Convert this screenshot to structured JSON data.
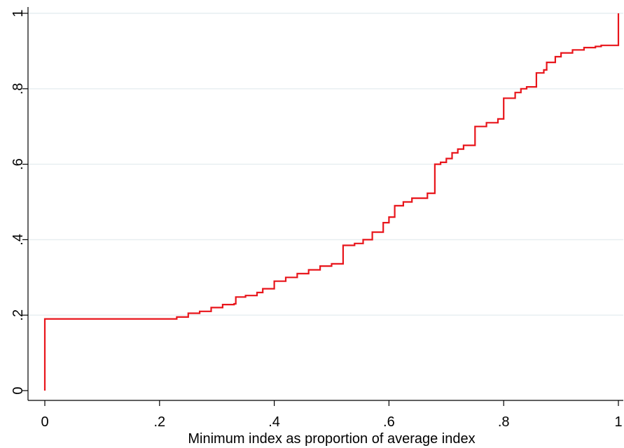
{
  "chart_data": {
    "type": "line",
    "title": "",
    "xlabel": "Minimum index as proportion of average index",
    "ylabel": "",
    "xlim": [
      0,
      1
    ],
    "ylim": [
      0,
      1
    ],
    "x_ticks": [
      0,
      0.2,
      0.4,
      0.6,
      0.8,
      1
    ],
    "x_tick_labels": [
      "0",
      ".2",
      ".4",
      ".6",
      ".8",
      "1"
    ],
    "y_ticks": [
      0,
      0.2,
      0.4,
      0.6,
      0.8,
      1
    ],
    "y_tick_labels": [
      "0",
      ".2",
      ".4",
      ".6",
      ".8",
      "1"
    ],
    "grid": "horizontal",
    "line_color": "#e8151b",
    "series": [
      {
        "name": "",
        "step": "post",
        "x": [
          0,
          0,
          0.21,
          0.23,
          0.25,
          0.27,
          0.29,
          0.31,
          0.33,
          0.333,
          0.35,
          0.37,
          0.38,
          0.4,
          0.42,
          0.44,
          0.46,
          0.48,
          0.5,
          0.52,
          0.54,
          0.555,
          0.571,
          0.59,
          0.6,
          0.61,
          0.625,
          0.64,
          0.667,
          0.68,
          0.69,
          0.7,
          0.71,
          0.72,
          0.73,
          0.75,
          0.77,
          0.79,
          0.8,
          0.82,
          0.83,
          0.84,
          0.857,
          0.87,
          0.875,
          0.89,
          0.9,
          0.92,
          0.94,
          0.96,
          0.97,
          1.0,
          1.0
        ],
        "values": [
          0,
          0.19,
          0.19,
          0.195,
          0.205,
          0.21,
          0.22,
          0.228,
          0.23,
          0.248,
          0.252,
          0.26,
          0.27,
          0.29,
          0.3,
          0.31,
          0.32,
          0.33,
          0.336,
          0.385,
          0.39,
          0.4,
          0.42,
          0.445,
          0.46,
          0.49,
          0.5,
          0.51,
          0.523,
          0.6,
          0.605,
          0.615,
          0.63,
          0.64,
          0.65,
          0.7,
          0.71,
          0.72,
          0.775,
          0.79,
          0.8,
          0.805,
          0.842,
          0.85,
          0.87,
          0.885,
          0.895,
          0.903,
          0.909,
          0.912,
          0.915,
          0.915,
          1.0
        ]
      }
    ]
  }
}
